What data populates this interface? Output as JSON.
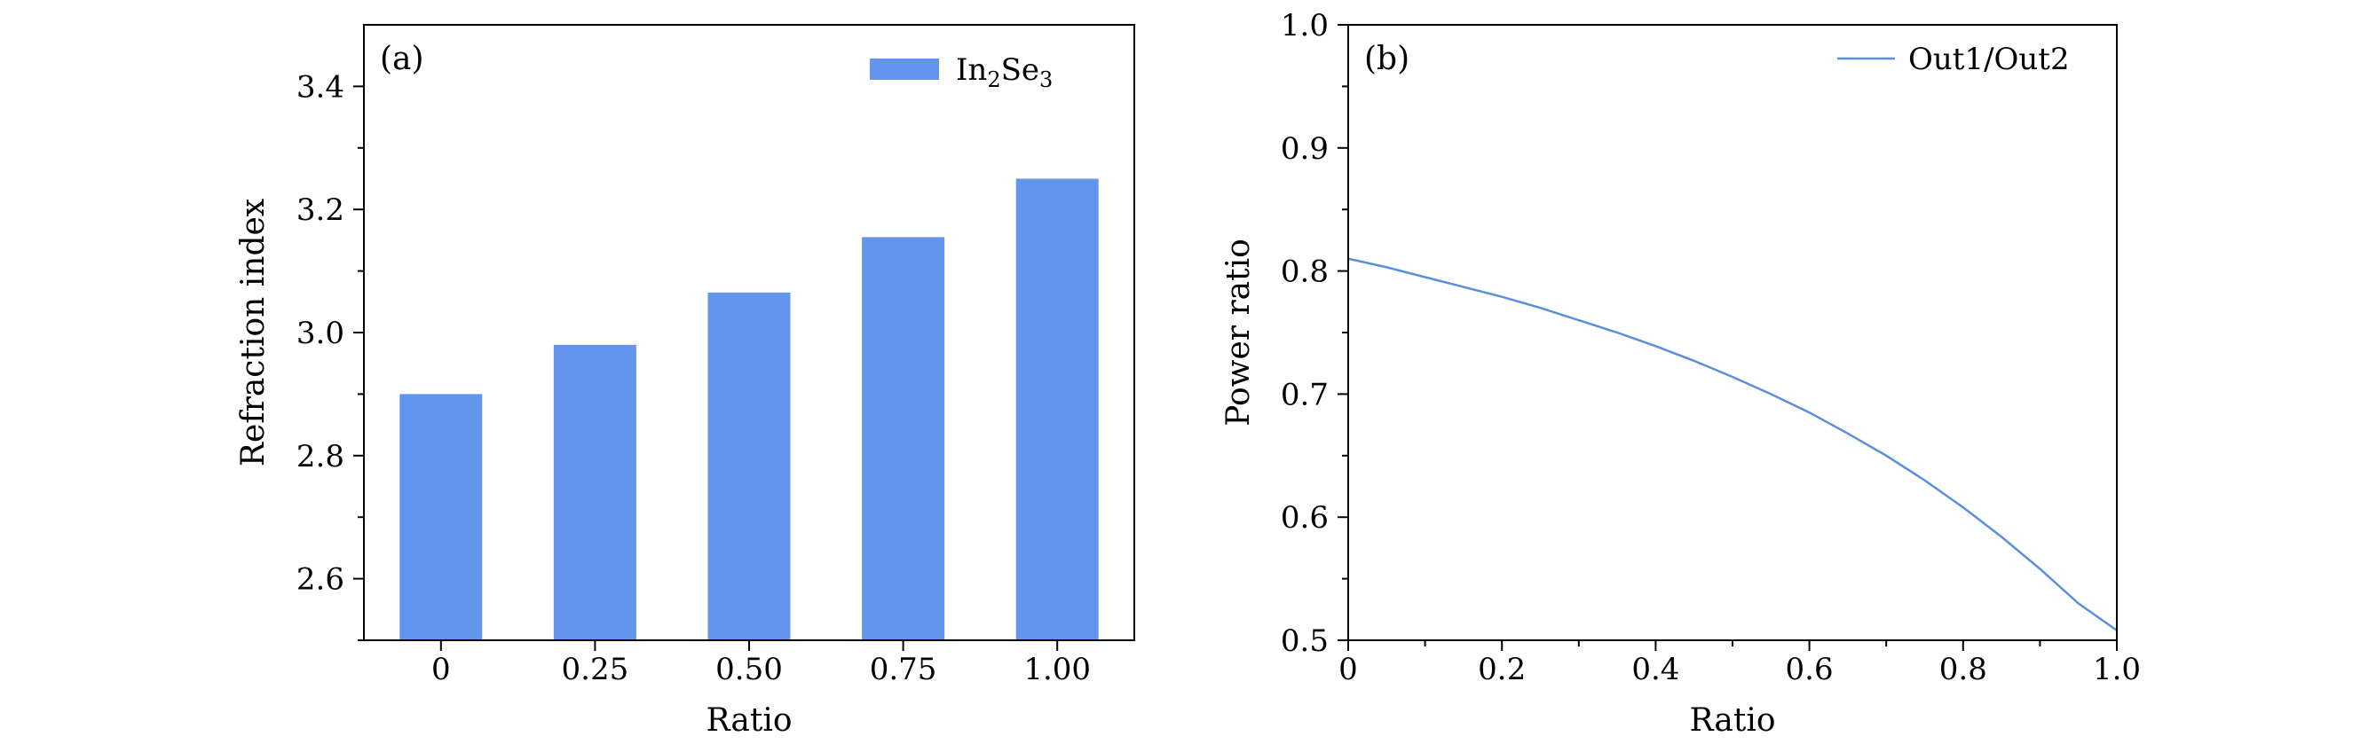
{
  "chart_data": [
    {
      "type": "bar",
      "panel_label": "(a)",
      "categories": [
        "0",
        "0.25",
        "0.50",
        "0.75",
        "1.00"
      ],
      "series": [
        {
          "name": "In₂Se₃",
          "values": [
            2.9,
            2.98,
            3.065,
            3.155,
            3.25
          ],
          "color": "#6495ED"
        }
      ],
      "xlabel": "Ratio",
      "ylabel": "Refraction index",
      "ylim": [
        2.5,
        3.5
      ],
      "y_ticks": [
        "2.6",
        "2.8",
        "3.0",
        "3.2",
        "3.4"
      ],
      "legend": {
        "position": "top-right",
        "label_main": "In",
        "sub1": "2",
        "label_mid": "Se",
        "sub2": "3"
      },
      "grid": false
    },
    {
      "type": "line",
      "panel_label": "(b)",
      "series": [
        {
          "name": "Out1/Out2",
          "color": "#5B8FDB",
          "x": [
            0,
            0.05,
            0.1,
            0.15,
            0.2,
            0.25,
            0.3,
            0.35,
            0.4,
            0.45,
            0.5,
            0.55,
            0.6,
            0.65,
            0.7,
            0.75,
            0.8,
            0.85,
            0.9,
            0.95,
            1.0
          ],
          "y": [
            0.81,
            0.803,
            0.795,
            0.787,
            0.779,
            0.77,
            0.76,
            0.75,
            0.739,
            0.727,
            0.714,
            0.7,
            0.685,
            0.668,
            0.65,
            0.63,
            0.608,
            0.584,
            0.558,
            0.53,
            0.508
          ]
        }
      ],
      "xlabel": "Ratio",
      "ylabel": "Power ratio",
      "xlim": [
        0,
        1
      ],
      "ylim": [
        0.5,
        1.0
      ],
      "x_ticks": [
        "0",
        "0.2",
        "0.4",
        "0.6",
        "0.8",
        "1.0"
      ],
      "y_ticks": [
        "0.5",
        "0.6",
        "0.7",
        "0.8",
        "0.9",
        "1.0"
      ],
      "legend": {
        "position": "top-right"
      },
      "grid": false
    }
  ]
}
